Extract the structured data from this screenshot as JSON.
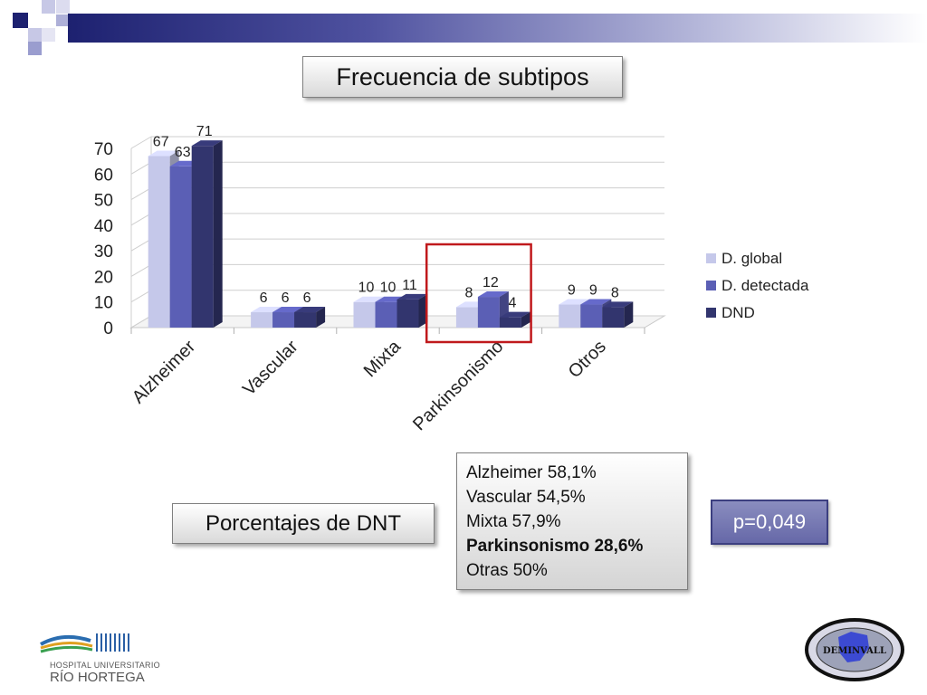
{
  "slide": {
    "title": "Frecuencia de subtipos",
    "pct_title": "Porcentajes de DNT",
    "pct_lines": [
      {
        "text": "Alzheimer 58,1%",
        "bold": false
      },
      {
        "text": "Vascular 54,5%",
        "bold": false
      },
      {
        "text": "Mixta 57,9%",
        "bold": false
      },
      {
        "text": "Parkinsonismo 28,6%",
        "bold": true
      },
      {
        "text": "Otras 50%",
        "bold": false
      }
    ],
    "p_value": "p=0,049",
    "hospital_line1": "HOSPITAL UNIVERSITARIO",
    "hospital_line2": "RÍO HORTEGA",
    "demival_logo_text": "DEMINVALL"
  },
  "chart_data": {
    "type": "bar",
    "title": "",
    "xlabel": "",
    "ylabel": "",
    "categories": [
      "Alzheimer",
      "Vascular",
      "Mixta",
      "Parkinsonismo",
      "Otros"
    ],
    "series": [
      {
        "name": "D. global",
        "values": [
          67,
          6,
          10,
          8,
          9
        ],
        "color": "#c5c8ea"
      },
      {
        "name": "D. detectada",
        "values": [
          63,
          6,
          10,
          12,
          9
        ],
        "color": "#5b5fb5"
      },
      {
        "name": "DND",
        "values": [
          71,
          6,
          11,
          4,
          8
        ],
        "color": "#32356e"
      }
    ],
    "ylim": [
      0,
      70
    ],
    "yticks": [
      0,
      10,
      20,
      30,
      40,
      50,
      60,
      70
    ],
    "grid": true,
    "legend": "right",
    "highlight_category": "Parkinsonismo",
    "highlight_color": "#c0191c"
  }
}
